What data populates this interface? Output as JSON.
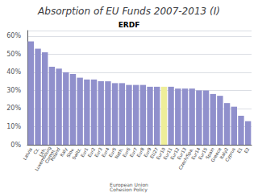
{
  "chart_data": {
    "type": "bar",
    "title": "Absorption of EU Funds 2007-2013 (I)",
    "subtitle": "ERDF",
    "annotation": "European Union\nCohesion Policy",
    "categories": [
      "Latvia",
      "Cz.",
      "Lith.",
      "Luxembourg\nComm.",
      "Poland",
      "Italy",
      "Slov.",
      "Switz.",
      "Eur1",
      "Eur2",
      "Eur3",
      "Eur4",
      "Eur5",
      "Neth.",
      "Eur6",
      "Eur7",
      "Eur8",
      "Eur9",
      "EU27",
      "Eur10",
      "Eur11",
      "Eur12",
      "Eur13",
      "Czech/Spa.",
      "Eur14",
      "Eur15",
      "Spain",
      "Greece",
      "Italy2",
      "Cyprus",
      "E1",
      "E2"
    ],
    "values": [
      57,
      53,
      51,
      43,
      42,
      40,
      39,
      37,
      36,
      36,
      35,
      35,
      34,
      34,
      33,
      33,
      33,
      32,
      32,
      32,
      32,
      31,
      31,
      31,
      30,
      30,
      28,
      27,
      23,
      21,
      16,
      13
    ],
    "colors": [
      "#9090cc",
      "#9090cc",
      "#9090cc",
      "#9090cc",
      "#9090cc",
      "#9090cc",
      "#9090cc",
      "#9090cc",
      "#9090cc",
      "#9090cc",
      "#9090cc",
      "#9090cc",
      "#9090cc",
      "#9090cc",
      "#9090cc",
      "#9090cc",
      "#9090cc",
      "#9090cc",
      "#9090cc",
      "#eeee99",
      "#9090cc",
      "#9090cc",
      "#9090cc",
      "#9090cc",
      "#9090cc",
      "#9090cc",
      "#9090cc",
      "#9090cc",
      "#9090cc",
      "#9090cc",
      "#9090cc",
      "#9090cc"
    ],
    "ylim": [
      0,
      63
    ],
    "yticks": [
      {
        "value": 0,
        "label": "0%"
      },
      {
        "value": 10,
        "label": "10%"
      },
      {
        "value": 20,
        "label": "20%"
      },
      {
        "value": 30,
        "label": "30%"
      },
      {
        "value": 40,
        "label": "40%"
      },
      {
        "value": 50,
        "label": "50%"
      },
      {
        "value": 60,
        "label": "60%"
      }
    ],
    "grid": true
  }
}
